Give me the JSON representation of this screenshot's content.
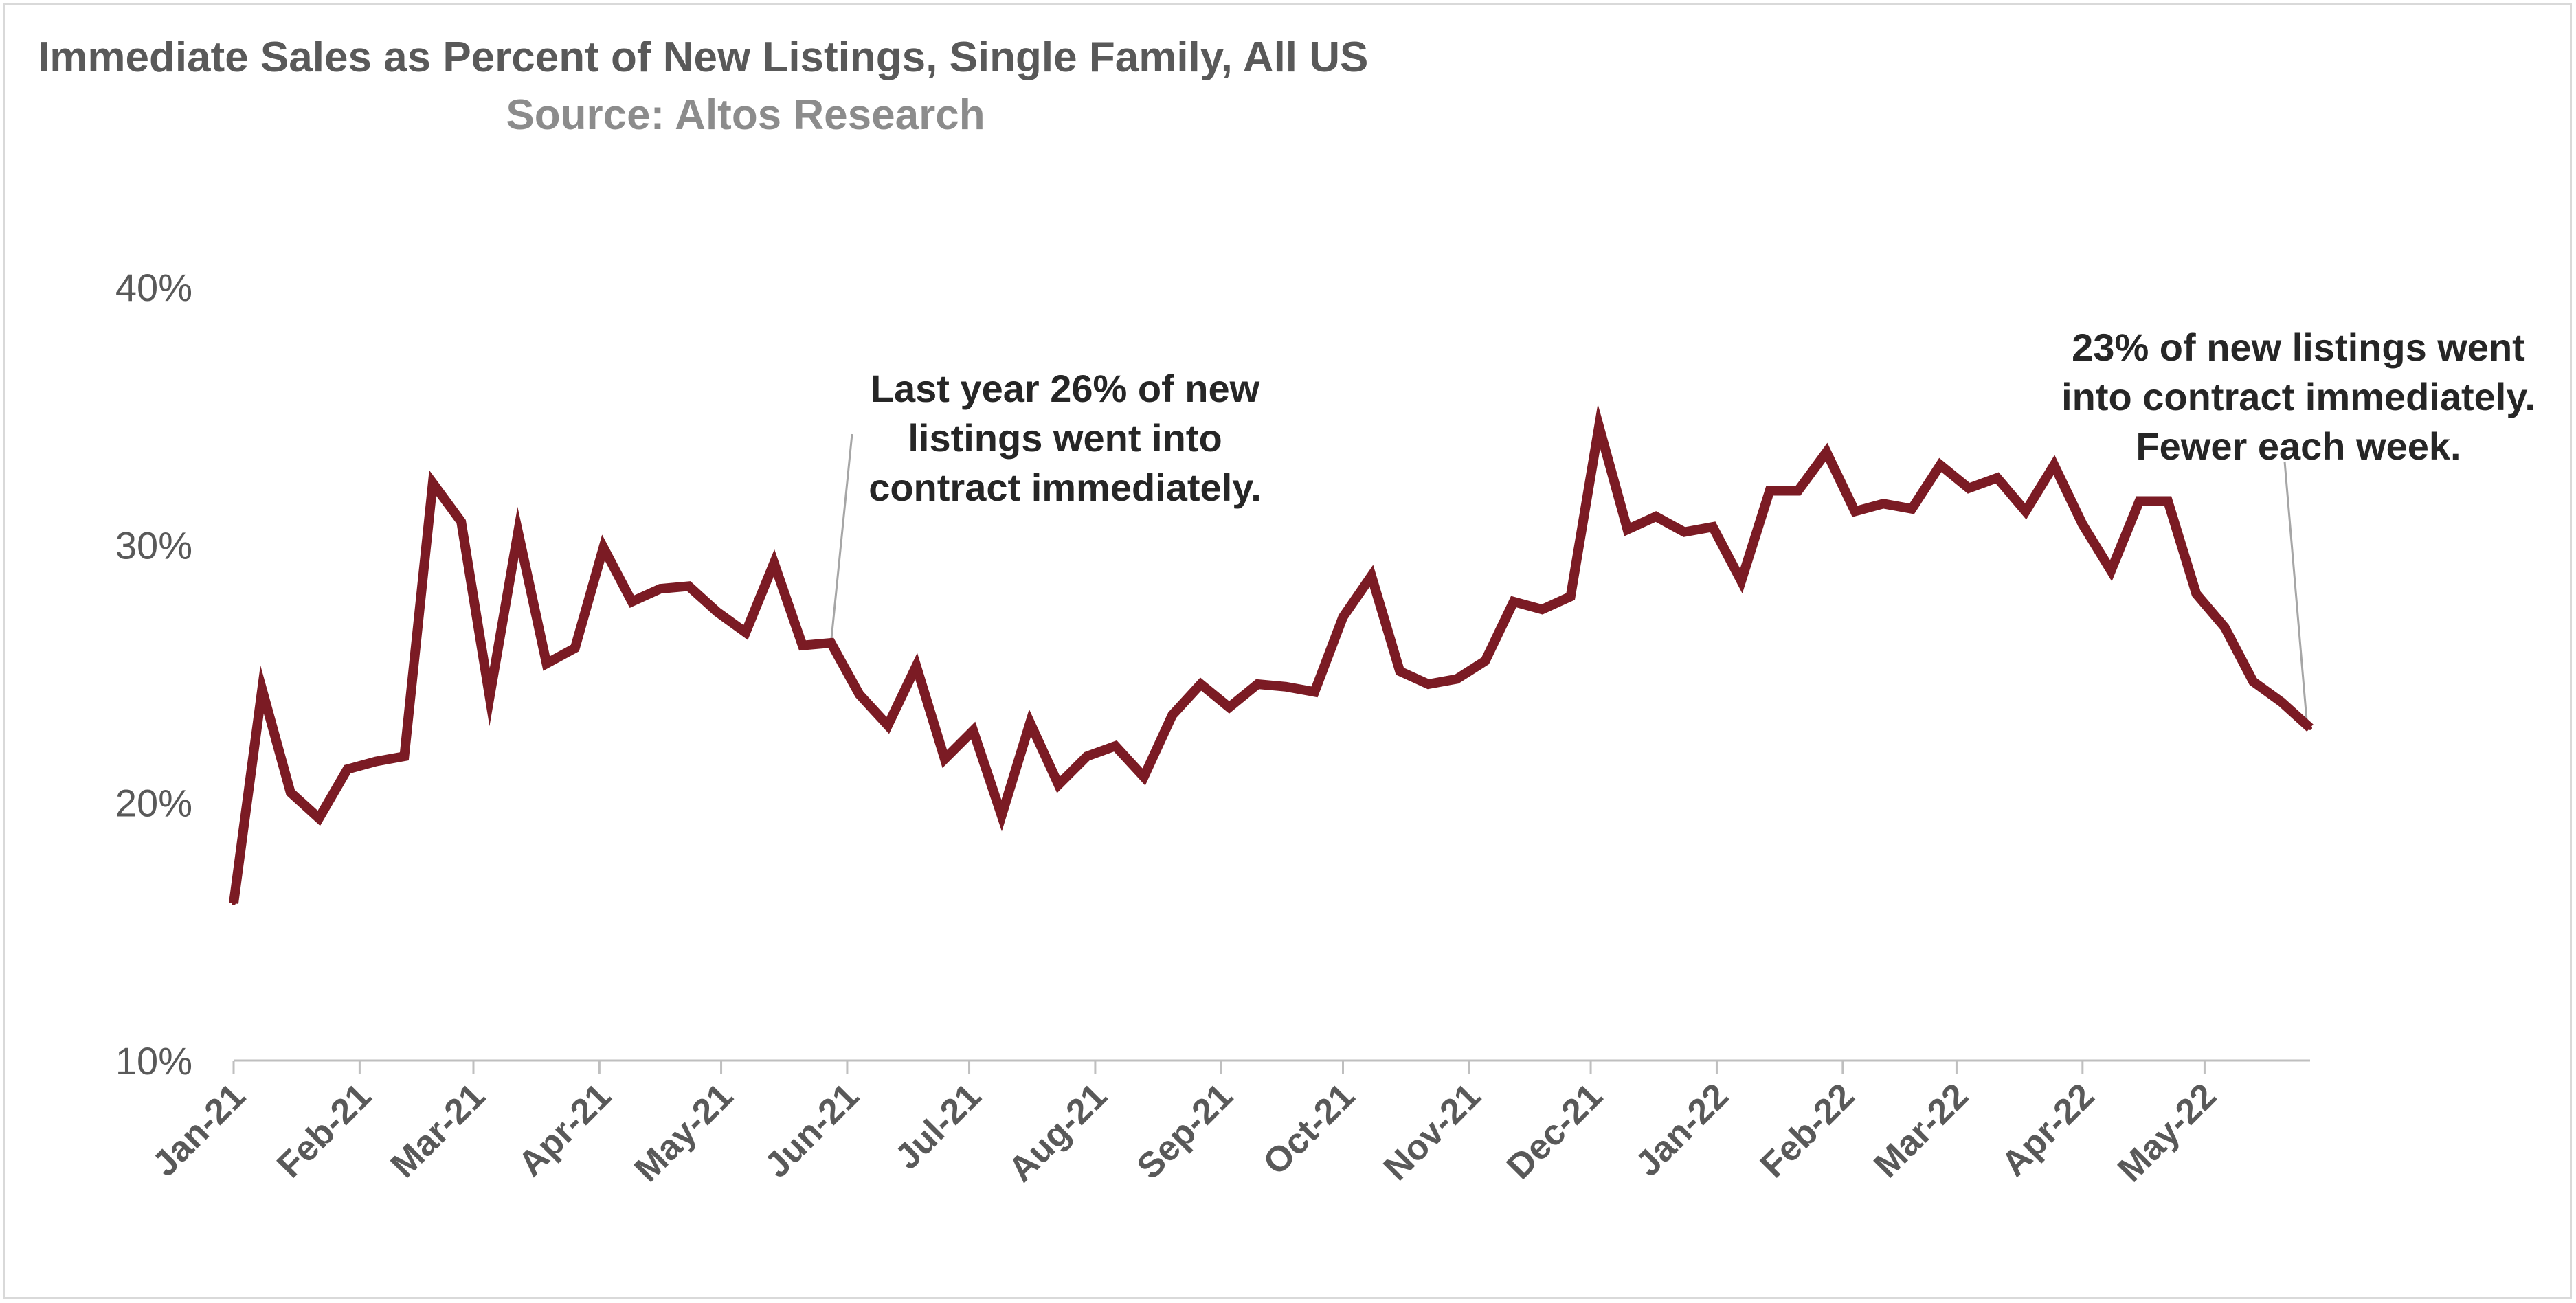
{
  "title": "Immediate Sales as Percent of New Listings, Single Family, All US",
  "subtitle": "Source: Altos Research",
  "chart_data": {
    "type": "line",
    "title": "Immediate Sales as Percent of New Listings, Single Family, All US",
    "subtitle": "Source: Altos Research",
    "xlabel": "",
    "ylabel": "",
    "ylim": [
      10,
      40
    ],
    "yticks": [
      "10%",
      "20%",
      "30%",
      "40%"
    ],
    "xlim_weeks": [
      0,
      73
    ],
    "xticks": [
      {
        "label": "Jan-21",
        "week": 0
      },
      {
        "label": "Feb-21",
        "week": 4.43
      },
      {
        "label": "Mar-21",
        "week": 8.43
      },
      {
        "label": "Apr-21",
        "week": 12.86
      },
      {
        "label": "May-21",
        "week": 17.14
      },
      {
        "label": "Jun-21",
        "week": 21.57
      },
      {
        "label": "Jul-21",
        "week": 25.86
      },
      {
        "label": "Aug-21",
        "week": 30.29
      },
      {
        "label": "Sep-21",
        "week": 34.71
      },
      {
        "label": "Oct-21",
        "week": 39
      },
      {
        "label": "Nov-21",
        "week": 43.43
      },
      {
        "label": "Dec-21",
        "week": 47.71
      },
      {
        "label": "Jan-22",
        "week": 52.14
      },
      {
        "label": "Feb-22",
        "week": 56.57
      },
      {
        "label": "Mar-22",
        "week": 60.57
      },
      {
        "label": "Apr-22",
        "week": 65
      },
      {
        "label": "May-22",
        "week": 69.29
      }
    ],
    "grid": false,
    "line_color": "#7b1b24",
    "series": [
      {
        "name": "",
        "x": [
          0,
          1,
          2,
          3,
          4,
          5,
          6,
          7,
          8,
          9,
          10,
          11,
          12,
          13,
          14,
          15,
          16,
          17,
          18,
          19,
          20,
          21,
          22,
          23,
          24,
          25,
          26,
          27,
          28,
          29,
          30,
          31,
          32,
          33,
          34,
          35,
          36,
          37,
          38,
          39,
          40,
          41,
          42,
          43,
          44,
          45,
          46,
          47,
          48,
          49,
          50,
          51,
          52,
          53,
          54,
          55,
          56,
          57,
          58,
          59,
          60,
          61,
          62,
          63,
          64,
          65,
          66,
          67,
          68,
          69,
          70,
          71,
          72,
          73
        ],
        "values": [
          16.1,
          24.4,
          20.4,
          19.4,
          21.3,
          21.6,
          21.8,
          32.4,
          30.9,
          24.1,
          30.5,
          25.4,
          26.0,
          29.9,
          27.8,
          28.3,
          28.4,
          27.4,
          26.6,
          29.3,
          26.1,
          26.2,
          24.2,
          23.0,
          25.3,
          21.7,
          22.8,
          19.5,
          23.1,
          20.7,
          21.8,
          22.2,
          21.0,
          23.4,
          24.6,
          23.7,
          24.6,
          24.5,
          24.3,
          27.2,
          28.8,
          25.1,
          24.6,
          24.8,
          25.5,
          27.8,
          27.5,
          28.0,
          34.6,
          30.6,
          31.1,
          30.5,
          30.7,
          28.6,
          32.1,
          32.1,
          33.6,
          31.3,
          31.6,
          31.4,
          33.1,
          32.2,
          32.6,
          31.3,
          33.1,
          30.8,
          29.0,
          31.7,
          31.7,
          28.1,
          26.8,
          24.7,
          23.9,
          22.9
        ]
      }
    ],
    "annotations": [
      {
        "lines": [
          "Last year 26% of new",
          "listings went into",
          "contract immediately."
        ],
        "week": 21
      },
      {
        "lines": [
          "23% of new listings went",
          "into contract immediately.",
          "Fewer each week."
        ],
        "week": 73
      }
    ]
  }
}
